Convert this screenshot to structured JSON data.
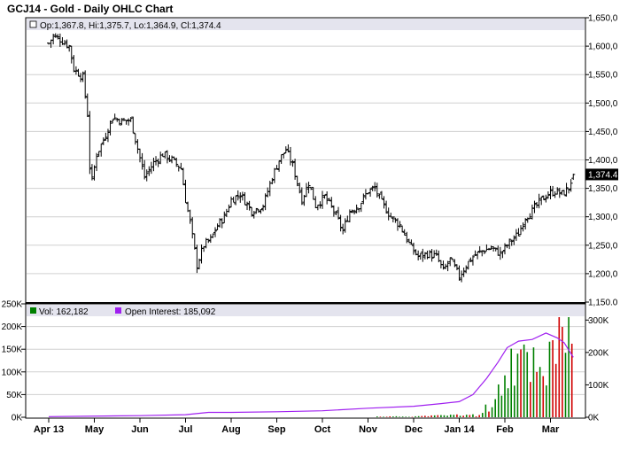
{
  "title": "GCJ14 - Gold - Daily OHLC Chart",
  "price_panel": {
    "info": "Op:1,367.8, Hi:1,375.7, Lo:1,364.9, Cl:1,374.4",
    "last_label": "1,374.4",
    "y_ticks": [
      "1,150.0",
      "1,200,0",
      "1,250,0",
      "1,300,0",
      "1,350,0",
      "1,400,0",
      "1,450,0",
      "1,500,0",
      "1,550,0",
      "1,600,0",
      "1,650,0"
    ]
  },
  "volume_panel": {
    "vol_legend": "Vol: 162,182",
    "oi_legend": "Open Interest: 185,092",
    "left_ticks": [
      "0K",
      "50K",
      "100K",
      "150K",
      "200K",
      "250K"
    ],
    "right_ticks": [
      "0K",
      "100K",
      "200K",
      "300K"
    ]
  },
  "x_ticks": [
    "Apr 13",
    "May",
    "Jun",
    "Jul",
    "Aug",
    "Sep",
    "Oct",
    "Nov",
    "Dec",
    "Jan 14",
    "Feb",
    "Mar"
  ],
  "colors": {
    "frame": "#000000",
    "legend_bg": "#e4e4ee",
    "grid": "#d0d0d0",
    "bar": "#000000",
    "volume_up": "#008000",
    "volume_down": "#d00000",
    "open_interest": "#a020f0",
    "last_price_bg": "#000000"
  },
  "chart_data": [
    {
      "type": "ohlc",
      "title": "GCJ14 - Gold - Daily OHLC Chart",
      "x_axis": [
        "Apr 13",
        "May",
        "Jun",
        "Jul",
        "Aug",
        "Sep",
        "Oct",
        "Nov",
        "Dec",
        "Jan 14",
        "Feb",
        "Mar"
      ],
      "ylim": [
        1150,
        1650
      ],
      "last": {
        "open": 1367.8,
        "high": 1375.7,
        "low": 1364.9,
        "close": 1374.4
      },
      "close_path": [
        {
          "month": 0.0,
          "close": 1605
        },
        {
          "month": 0.1,
          "close": 1618
        },
        {
          "month": 0.25,
          "close": 1612
        },
        {
          "month": 0.45,
          "close": 1600
        },
        {
          "month": 0.55,
          "close": 1560
        },
        {
          "month": 0.75,
          "close": 1545
        },
        {
          "month": 0.85,
          "close": 1480
        },
        {
          "month": 0.92,
          "close": 1350
        },
        {
          "month": 1.05,
          "close": 1410
        },
        {
          "month": 1.2,
          "close": 1435
        },
        {
          "month": 1.4,
          "close": 1475
        },
        {
          "month": 1.6,
          "close": 1468
        },
        {
          "month": 1.8,
          "close": 1470
        },
        {
          "month": 1.95,
          "close": 1420
        },
        {
          "month": 2.1,
          "close": 1370
        },
        {
          "month": 2.3,
          "close": 1395
        },
        {
          "month": 2.5,
          "close": 1410
        },
        {
          "month": 2.7,
          "close": 1400
        },
        {
          "month": 2.9,
          "close": 1385
        },
        {
          "month": 3.0,
          "close": 1330
        },
        {
          "month": 3.1,
          "close": 1290
        },
        {
          "month": 3.25,
          "close": 1215
        },
        {
          "month": 3.4,
          "close": 1250
        },
        {
          "month": 3.55,
          "close": 1260
        },
        {
          "month": 3.7,
          "close": 1285
        },
        {
          "month": 3.85,
          "close": 1300
        },
        {
          "month": 4.0,
          "close": 1330
        },
        {
          "month": 4.2,
          "close": 1340
        },
        {
          "month": 4.45,
          "close": 1310
        },
        {
          "month": 4.7,
          "close": 1320
        },
        {
          "month": 4.9,
          "close": 1370
        },
        {
          "month": 5.05,
          "close": 1400
        },
        {
          "month": 5.2,
          "close": 1418
        },
        {
          "month": 5.35,
          "close": 1390
        },
        {
          "month": 5.55,
          "close": 1330
        },
        {
          "month": 5.7,
          "close": 1360
        },
        {
          "month": 5.85,
          "close": 1320
        },
        {
          "month": 6.05,
          "close": 1335
        },
        {
          "month": 6.25,
          "close": 1310
        },
        {
          "month": 6.45,
          "close": 1275
        },
        {
          "month": 6.6,
          "close": 1310
        },
        {
          "month": 6.8,
          "close": 1320
        },
        {
          "month": 7.0,
          "close": 1345
        },
        {
          "month": 7.15,
          "close": 1350
        },
        {
          "month": 7.3,
          "close": 1325
        },
        {
          "month": 7.5,
          "close": 1300
        },
        {
          "month": 7.7,
          "close": 1285
        },
        {
          "month": 7.95,
          "close": 1245
        },
        {
          "month": 8.1,
          "close": 1230
        },
        {
          "month": 8.3,
          "close": 1235
        },
        {
          "month": 8.5,
          "close": 1230
        },
        {
          "month": 8.65,
          "close": 1205
        },
        {
          "month": 8.8,
          "close": 1225
        },
        {
          "month": 9.0,
          "close": 1195
        },
        {
          "month": 9.15,
          "close": 1215
        },
        {
          "month": 9.3,
          "close": 1230
        },
        {
          "month": 9.5,
          "close": 1240
        },
        {
          "month": 9.7,
          "close": 1245
        },
        {
          "month": 9.9,
          "close": 1235
        },
        {
          "month": 10.1,
          "close": 1255
        },
        {
          "month": 10.3,
          "close": 1270
        },
        {
          "month": 10.45,
          "close": 1300
        },
        {
          "month": 10.6,
          "close": 1310
        },
        {
          "month": 10.8,
          "close": 1330
        },
        {
          "month": 10.95,
          "close": 1340
        },
        {
          "month": 11.1,
          "close": 1345
        },
        {
          "month": 11.25,
          "close": 1340
        },
        {
          "month": 11.4,
          "close": 1350
        },
        {
          "month": 11.5,
          "close": 1374.4
        }
      ]
    },
    {
      "type": "bar",
      "title": "Volume / Open Interest",
      "legend": [
        "Vol: 162,182",
        "Open Interest: 185,092"
      ],
      "volume_ylim": [
        0,
        250000
      ],
      "open_interest_ylim": [
        0,
        350000
      ],
      "volume_last": 162182,
      "open_interest_last": 185092,
      "open_interest_path": [
        {
          "month": 0.0,
          "value": 2000
        },
        {
          "month": 2.0,
          "value": 5000
        },
        {
          "month": 3.0,
          "value": 8000
        },
        {
          "month": 3.5,
          "value": 15000
        },
        {
          "month": 4.0,
          "value": 15000
        },
        {
          "month": 5.0,
          "value": 17000
        },
        {
          "month": 6.0,
          "value": 20000
        },
        {
          "month": 7.0,
          "value": 28000
        },
        {
          "month": 8.0,
          "value": 34000
        },
        {
          "month": 8.6,
          "value": 42000
        },
        {
          "month": 9.0,
          "value": 48000
        },
        {
          "month": 9.3,
          "value": 70000
        },
        {
          "month": 9.6,
          "value": 120000
        },
        {
          "month": 9.85,
          "value": 170000
        },
        {
          "month": 10.05,
          "value": 215000
        },
        {
          "month": 10.3,
          "value": 235000
        },
        {
          "month": 10.6,
          "value": 240000
        },
        {
          "month": 10.9,
          "value": 260000
        },
        {
          "month": 11.15,
          "value": 245000
        },
        {
          "month": 11.3,
          "value": 230000
        },
        {
          "month": 11.5,
          "value": 185092
        }
      ],
      "volume_peaks": [
        {
          "month": 9.45,
          "value": 20000
        },
        {
          "month": 9.75,
          "value": 40000
        },
        {
          "month": 9.95,
          "value": 120000
        },
        {
          "month": 10.1,
          "value": 160000
        },
        {
          "month": 10.3,
          "value": 175000
        },
        {
          "month": 10.55,
          "value": 190000
        },
        {
          "month": 10.8,
          "value": 170000
        },
        {
          "month": 11.0,
          "value": 160000
        },
        {
          "month": 11.2,
          "value": 210000
        },
        {
          "month": 11.4,
          "value": 230000
        },
        {
          "month": 11.5,
          "value": 162182
        }
      ]
    }
  ]
}
